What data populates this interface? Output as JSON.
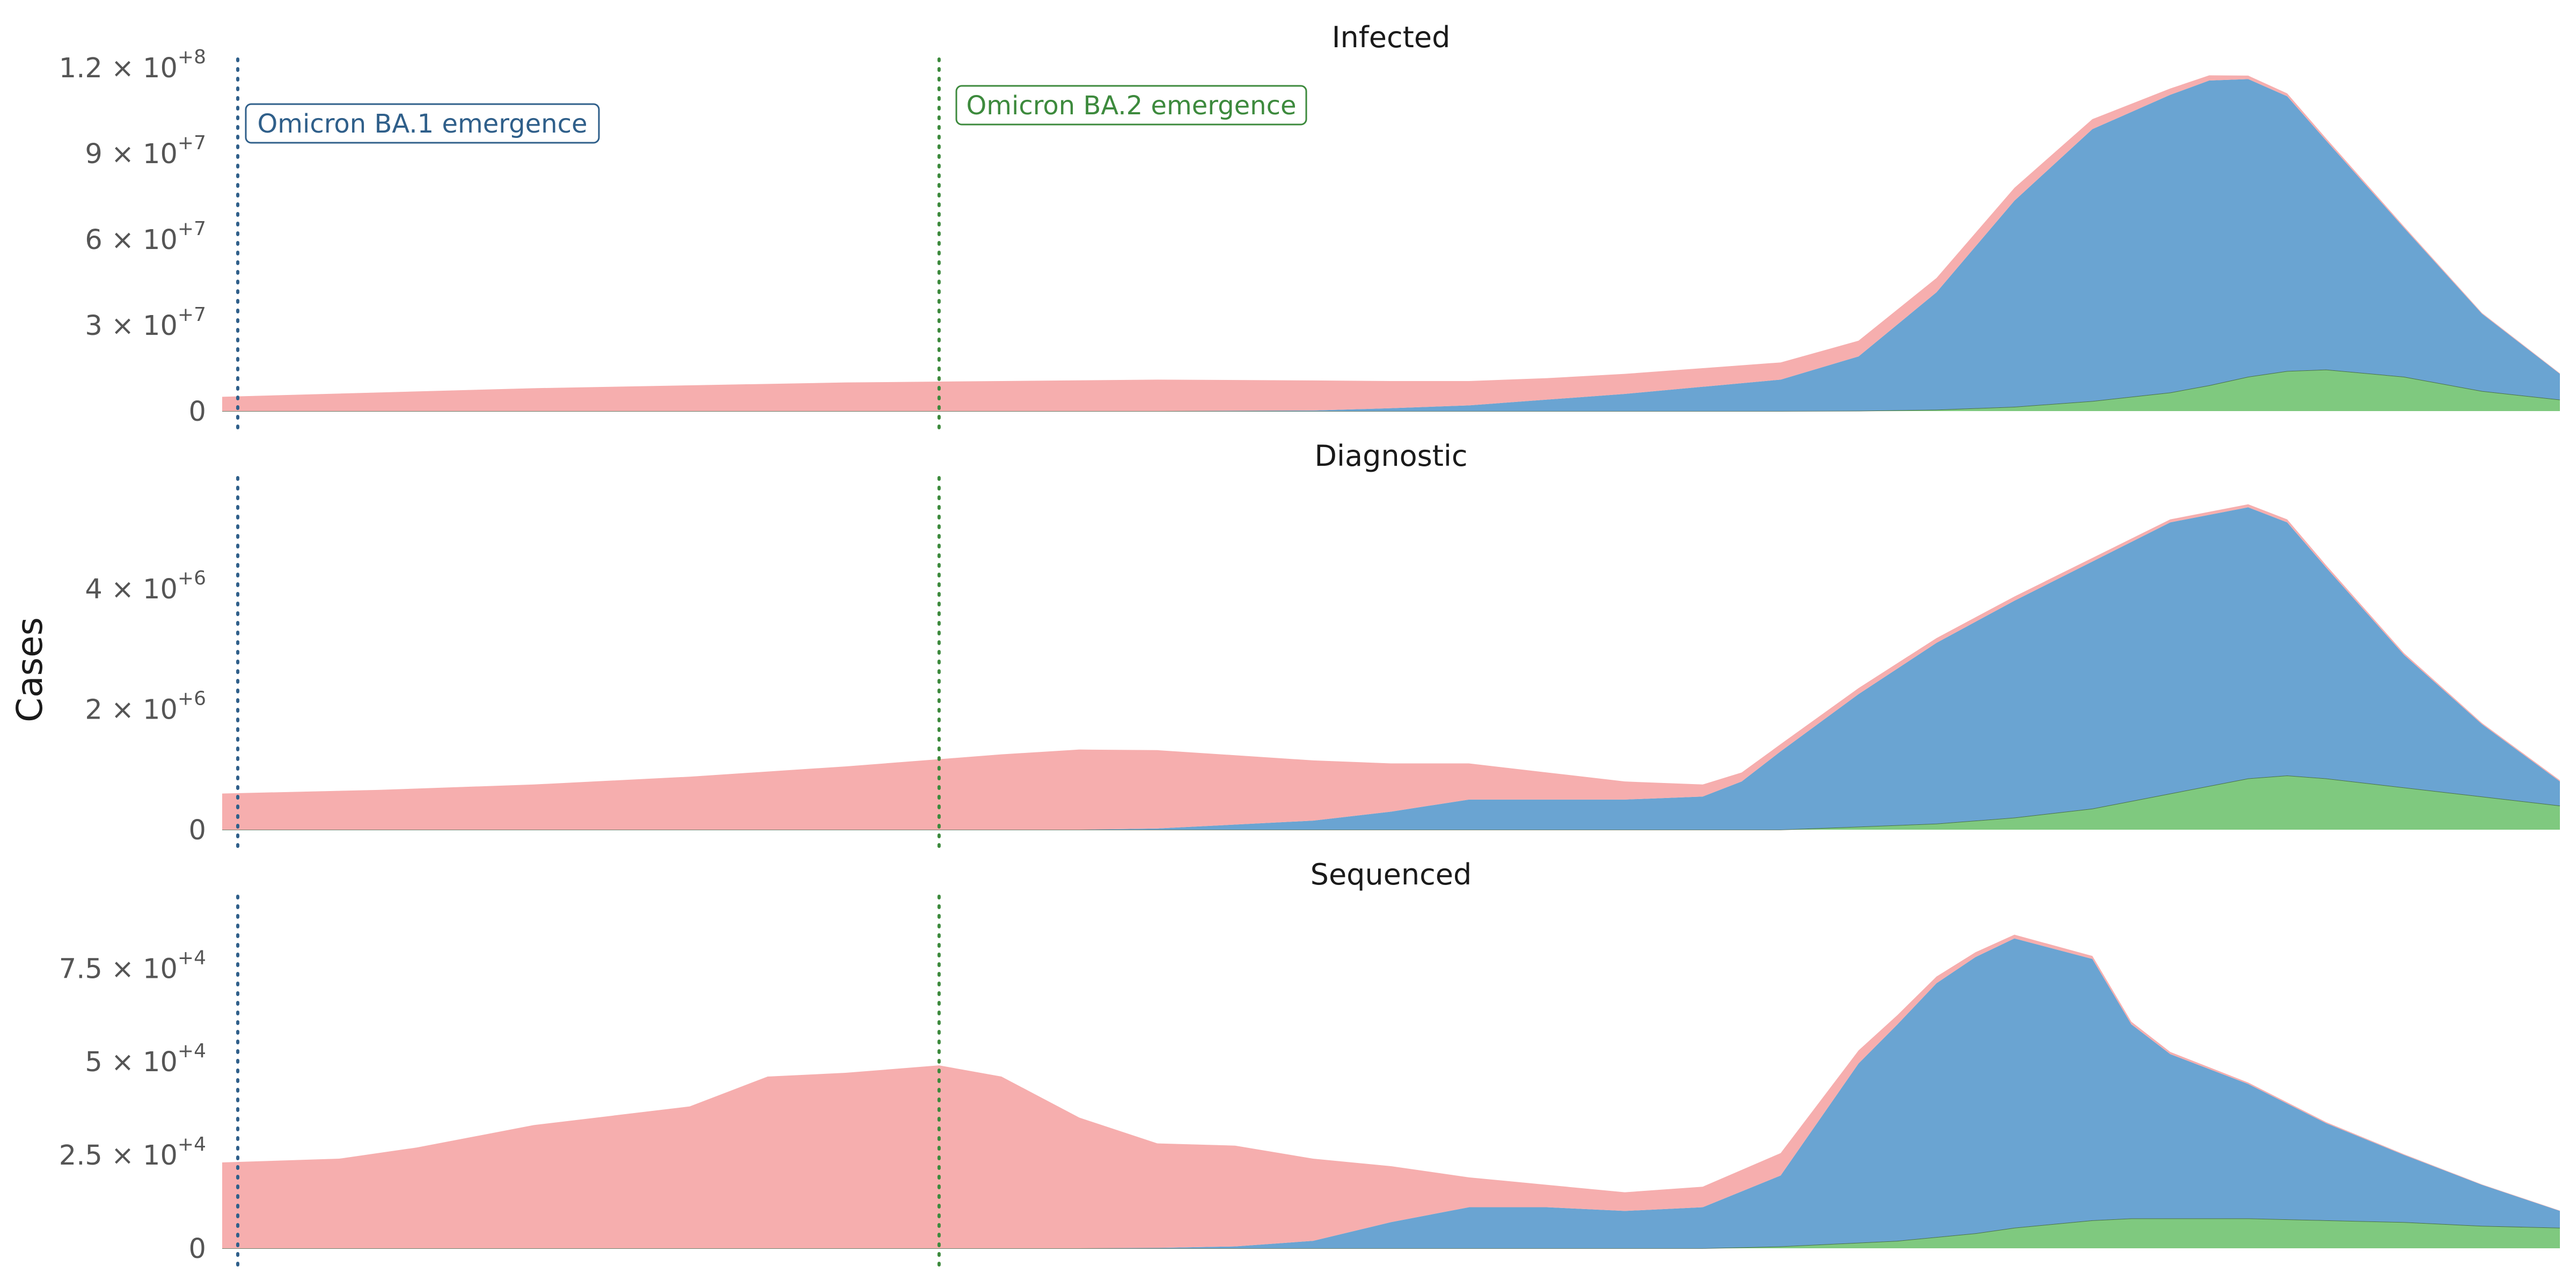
{
  "ylabel": "Cases",
  "colors": {
    "omicron_ba2": "#7fc97f",
    "omicron_ba1": "#6aa4d2",
    "other": "#f6aeae",
    "ba1_line": "#2f5f8a",
    "ba2_line": "#3d8a3d"
  },
  "annotations": [
    {
      "label": "Omicron BA.1 emergence",
      "x": 2,
      "color": "#2f5f8a"
    },
    {
      "label": "Omicron BA.2 emergence",
      "x": 92,
      "color": "#3d8a3d"
    }
  ],
  "chart_data": [
    {
      "type": "area",
      "stacked": true,
      "title": "Infected",
      "xlim": [
        0,
        300
      ],
      "ylim": [
        0,
        120000000
      ],
      "y_ticks": [
        {
          "value": 0,
          "mantissa": "0",
          "exp": ""
        },
        {
          "value": 30000000,
          "mantissa": "3 × 10",
          "exp": "+7"
        },
        {
          "value": 60000000,
          "mantissa": "6 × 10",
          "exp": "+7"
        },
        {
          "value": 90000000,
          "mantissa": "9 × 10",
          "exp": "+7"
        },
        {
          "value": 120000000,
          "mantissa": "1.2 × 10",
          "exp": "+8"
        }
      ],
      "x": [
        0,
        20,
        40,
        60,
        80,
        100,
        120,
        140,
        150,
        160,
        170,
        180,
        190,
        200,
        210,
        220,
        230,
        240,
        250,
        255,
        260,
        265,
        270,
        280,
        290,
        300
      ],
      "series": [
        {
          "key": "omicron_ba2",
          "values": [
            0,
            0,
            0,
            0,
            0,
            0,
            0,
            0,
            0,
            0,
            0,
            0,
            0,
            0,
            0.1,
            0.5,
            1.5,
            3.5,
            6.5,
            9,
            12,
            14,
            14.5,
            12,
            7,
            4
          ]
        },
        {
          "key": "omicron_ba1",
          "values": [
            0,
            0,
            0,
            0,
            0,
            0,
            0,
            0.2,
            1,
            2,
            4,
            6,
            8.5,
            11,
            19,
            41,
            72,
            95,
            104,
            106.5,
            104,
            96,
            80,
            52,
            27,
            9
          ]
        },
        {
          "key": "other",
          "values": [
            5,
            6.5,
            8,
            9,
            10,
            10.5,
            11,
            10.5,
            9.5,
            8.5,
            7.5,
            7,
            6.5,
            6,
            5.5,
            5,
            4.5,
            3.5,
            2.2,
            1.8,
            1.2,
            1,
            0.8,
            0.5,
            0.3,
            0.2
          ]
        }
      ]
    },
    {
      "type": "area",
      "stacked": true,
      "title": "Diagnostic",
      "xlim": [
        0,
        300
      ],
      "ylim": [
        0,
        5700000
      ],
      "y_ticks": [
        {
          "value": 0,
          "mantissa": "0",
          "exp": ""
        },
        {
          "value": 2000000,
          "mantissa": "2 × 10",
          "exp": "+6"
        },
        {
          "value": 4000000,
          "mantissa": "4 × 10",
          "exp": "+6"
        }
      ],
      "x": [
        0,
        20,
        40,
        60,
        80,
        100,
        110,
        120,
        140,
        150,
        160,
        170,
        180,
        190,
        195,
        200,
        210,
        220,
        230,
        240,
        250,
        260,
        265,
        270,
        280,
        290,
        300
      ],
      "series": [
        {
          "key": "omicron_ba2",
          "values": [
            0,
            0,
            0,
            0,
            0,
            0,
            0,
            0,
            0,
            0,
            0,
            0,
            0,
            0,
            0,
            0,
            0.05,
            0.1,
            0.2,
            0.35,
            0.6,
            0.85,
            0.9,
            0.85,
            0.7,
            0.55,
            0.4
          ]
        },
        {
          "key": "omicron_ba1",
          "values": [
            0,
            0,
            0,
            0,
            0,
            0,
            0,
            0.02,
            0.15,
            0.3,
            0.5,
            0.5,
            0.5,
            0.55,
            0.8,
            1.3,
            2.2,
            3.0,
            3.6,
            4.1,
            4.5,
            4.5,
            4.2,
            3.5,
            2.2,
            1.2,
            0.4
          ]
        },
        {
          "key": "other",
          "values": [
            0.6,
            0.66,
            0.75,
            0.88,
            1.05,
            1.25,
            1.33,
            1.3,
            1.0,
            0.8,
            0.6,
            0.45,
            0.3,
            0.2,
            0.15,
            0.12,
            0.1,
            0.08,
            0.07,
            0.06,
            0.05,
            0.05,
            0.05,
            0.04,
            0.03,
            0.02,
            0.02
          ]
        }
      ]
    },
    {
      "type": "area",
      "stacked": true,
      "title": "Sequenced",
      "xlim": [
        0,
        300
      ],
      "ylim": [
        0,
        92000
      ],
      "y_ticks": [
        {
          "value": 0,
          "mantissa": "0",
          "exp": ""
        },
        {
          "value": 25000,
          "mantissa": "2.5 × 10",
          "exp": "+4"
        },
        {
          "value": 50000,
          "mantissa": "5 × 10",
          "exp": "+4"
        },
        {
          "value": 75000,
          "mantissa": "7.5 × 10",
          "exp": "+4"
        }
      ],
      "x": [
        0,
        15,
        25,
        40,
        60,
        70,
        80,
        92,
        100,
        110,
        120,
        130,
        140,
        150,
        160,
        170,
        180,
        190,
        200,
        210,
        215,
        220,
        225,
        230,
        240,
        245,
        250,
        260,
        270,
        280,
        290,
        300
      ],
      "series": [
        {
          "key": "omicron_ba2",
          "values": [
            0,
            0,
            0,
            0,
            0,
            0,
            0,
            0,
            0,
            0,
            0,
            0,
            0,
            0,
            0,
            0,
            0,
            0,
            0.5,
            1.5,
            2,
            3,
            4,
            5.5,
            7.5,
            8,
            8,
            8,
            7.5,
            7,
            6,
            5.5
          ]
        },
        {
          "key": "omicron_ba1",
          "values": [
            0,
            0,
            0,
            0,
            0,
            0,
            0,
            0,
            0,
            0,
            0.1,
            0.5,
            2,
            7,
            11,
            11,
            10,
            11,
            19,
            48,
            58,
            68,
            74,
            77.5,
            70,
            52,
            44,
            36,
            26,
            18,
            11,
            4.5
          ]
        },
        {
          "key": "other",
          "values": [
            23,
            24,
            27,
            33,
            38,
            46,
            47,
            49,
            46,
            35,
            28,
            27,
            22,
            15,
            8,
            6,
            5,
            5.5,
            6,
            3.5,
            2.5,
            1.8,
            1.3,
            1.0,
            0.8,
            0.7,
            0.6,
            0.4,
            0.3,
            0.2,
            0.1,
            0.1
          ]
        }
      ]
    }
  ]
}
